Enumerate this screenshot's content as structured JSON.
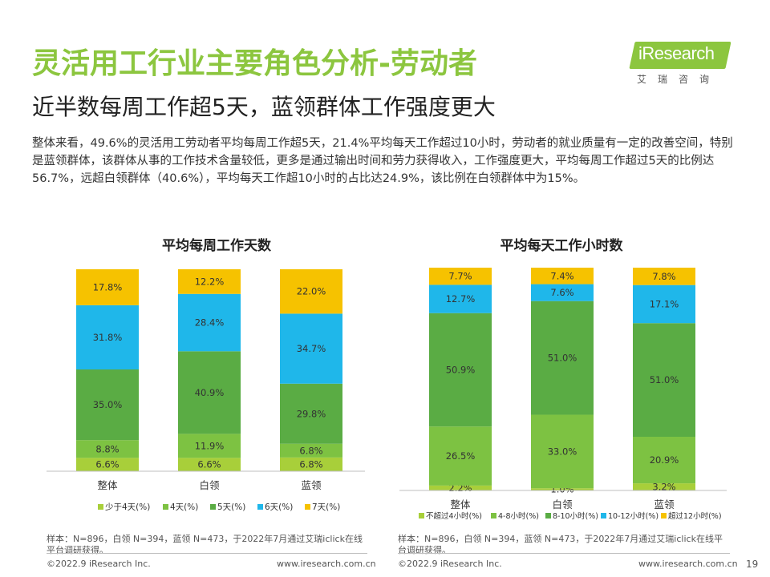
{
  "header": {
    "title": "灵活用工行业主要角色分析-劳动者",
    "subtitle": "近半数每周工作超5天，蓝领群体工作强度更大",
    "logo_text": "iResearch",
    "logo_sub": "艾瑞咨询"
  },
  "summary": "整体来看，49.6%的灵活用工劳动者平均每周工作超5天，21.4%平均每天工作超过10小时，劳动者的就业质量有一定的改善空间，特别是蓝领群体，该群体从事的工作技术含量较低，更多是通过输出时间和劳力获得收入，工作强度更大，平均每周工作超过5天的比例达56.7%，远超白领群体（40.6%），平均每天工作超10小时的占比达24.9%，该比例在白领群体中为15%。",
  "chart_data": [
    {
      "type": "bar",
      "stacked": true,
      "title": "平均每周工作天数",
      "categories": [
        "整体",
        "白领",
        "蓝领"
      ],
      "ylim": [
        0,
        100
      ],
      "unit": "%",
      "legend_position": "bottom",
      "series": [
        {
          "name": "少于4天(%)",
          "color": "#a8cf3a",
          "values": [
            6.6,
            6.6,
            6.8
          ]
        },
        {
          "name": "4天(%)",
          "color": "#7dc242",
          "values": [
            8.8,
            11.9,
            6.8
          ]
        },
        {
          "name": "5天(%)",
          "color": "#5aac44",
          "values": [
            35.0,
            40.9,
            29.8
          ]
        },
        {
          "name": "6天(%)",
          "color": "#1fb7ea",
          "values": [
            31.8,
            28.4,
            34.7
          ]
        },
        {
          "name": "7天(%)",
          "color": "#f6c200",
          "values": [
            17.8,
            12.2,
            22.0
          ]
        }
      ]
    },
    {
      "type": "bar",
      "stacked": true,
      "title": "平均每天工作小时数",
      "categories": [
        "整体",
        "白领",
        "蓝领"
      ],
      "ylim": [
        0,
        100
      ],
      "unit": "%",
      "legend_position": "bottom",
      "series": [
        {
          "name": "不超过4小时(%)",
          "color": "#a8cf3a",
          "values": [
            2.2,
            1.0,
            3.2
          ]
        },
        {
          "name": "4-8小时(%)",
          "color": "#7dc242",
          "values": [
            26.5,
            33.0,
            20.9
          ]
        },
        {
          "name": "8-10小时(%)",
          "color": "#5aac44",
          "values": [
            50.9,
            51.0,
            51.0
          ]
        },
        {
          "name": "10-12小时(%)",
          "color": "#1fb7ea",
          "values": [
            12.7,
            7.6,
            17.1
          ]
        },
        {
          "name": "超过12小时(%)",
          "color": "#f6c200",
          "values": [
            7.7,
            7.4,
            7.8
          ]
        }
      ]
    }
  ],
  "notes": {
    "sample": "样本：N=896，白领 N=394，蓝领 N=473，于2022年7月通过艾瑞iclick在线平台调研获得。",
    "copyright": "©2022.9 iResearch Inc.",
    "website": "www.iresearch.com.cn",
    "page": "19"
  }
}
